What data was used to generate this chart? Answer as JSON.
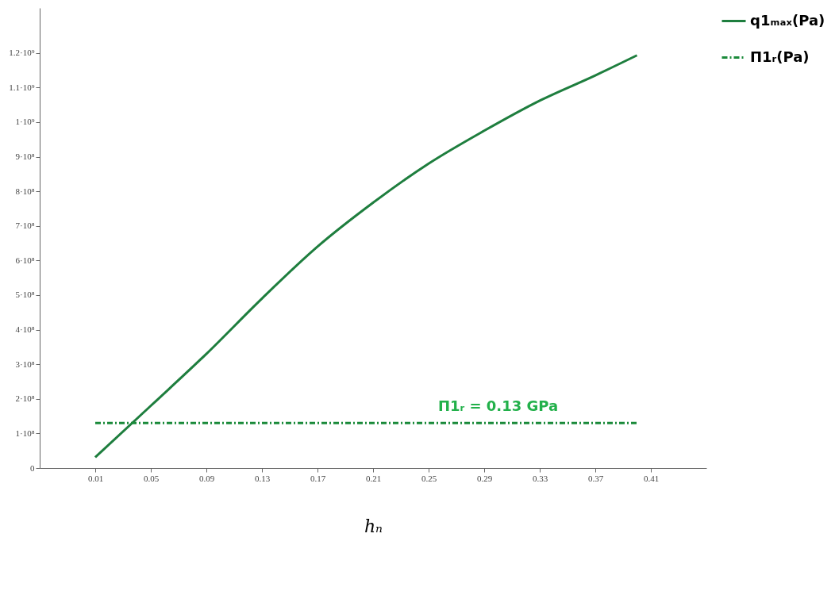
{
  "chart_data": {
    "type": "line",
    "xlabel": "hₙ",
    "x": [
      0.01,
      0.05,
      0.09,
      0.13,
      0.17,
      0.21,
      0.25,
      0.29,
      0.33,
      0.37,
      0.4
    ],
    "series": [
      {
        "name": "q1ₘₐₓ(Pa)",
        "color": "#1e7e3e",
        "line_style": "solid",
        "values": [
          31000000,
          180000000,
          330000000,
          490000000,
          640000000,
          767000000,
          880000000,
          975000000,
          1062000000,
          1135000000,
          1193000000
        ]
      },
      {
        "name": "Π1ᵣ(Pa)",
        "color": "#1a8a3a",
        "line_style": "dashed",
        "x": [
          0.01,
          0.4
        ],
        "values": [
          130000000,
          130000000
        ]
      }
    ],
    "annotations": [
      {
        "text": "Π1ᵣ = 0.13 GPa",
        "x": 0.3,
        "y": 130000000
      }
    ],
    "xlim": [
      -0.03,
      0.45
    ],
    "ylim": [
      0,
      1330000000
    ],
    "xticks": [
      0.01,
      0.05,
      0.09,
      0.13,
      0.17,
      0.21,
      0.25,
      0.29,
      0.33,
      0.37,
      0.41
    ],
    "yticks": [
      0,
      {
        "value": 100000000,
        "label": "1·10⁸"
      },
      {
        "value": 200000000,
        "label": "2·10⁸"
      },
      {
        "value": 300000000,
        "label": "3·10⁸"
      },
      {
        "value": 400000000,
        "label": "4·10⁸"
      },
      {
        "value": 500000000,
        "label": "5·10⁸"
      },
      {
        "value": 600000000,
        "label": "6·10⁸"
      },
      {
        "value": 700000000,
        "label": "7·10⁸"
      },
      {
        "value": 800000000,
        "label": "8·10⁸"
      },
      {
        "value": 900000000,
        "label": "9·10⁸"
      },
      {
        "value": 1000000000,
        "label": "1·10⁹"
      },
      {
        "value": 1100000000,
        "label": "1.1·10⁹"
      },
      {
        "value": 1200000000,
        "label": "1.2·10⁹"
      }
    ],
    "grid": false,
    "legend": "right",
    "marker": "none"
  }
}
